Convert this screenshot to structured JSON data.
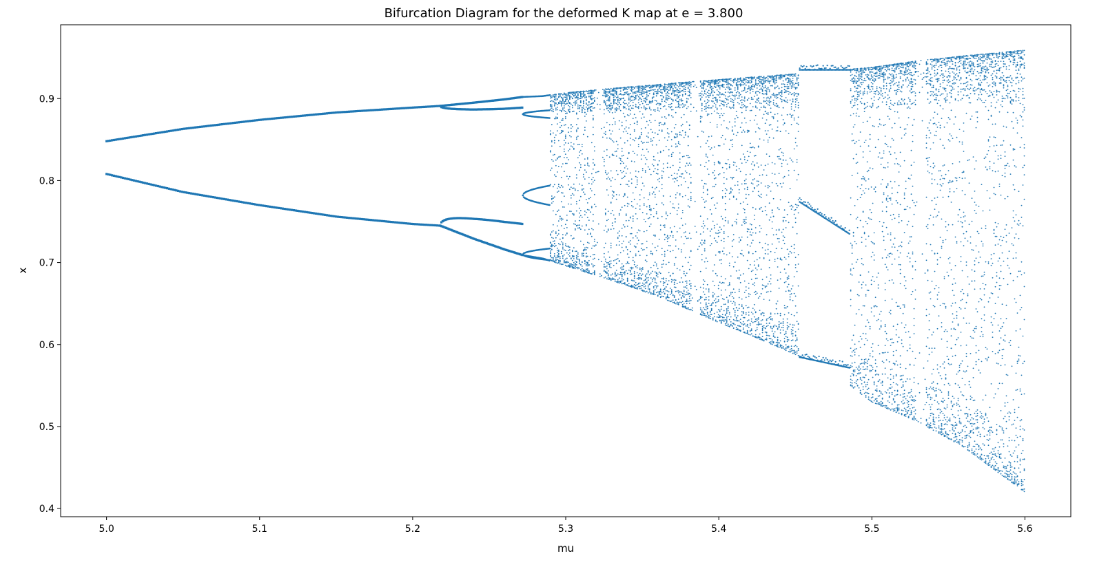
{
  "chart_data": {
    "type": "scatter",
    "title": "Bifurcation Diagram for the deformed K map at e = 3.800",
    "xlabel": "mu",
    "ylabel": "x",
    "xlim": [
      4.97,
      5.63
    ],
    "ylim": [
      0.39,
      0.99
    ],
    "xticks": [
      5.0,
      5.1,
      5.2,
      5.3,
      5.4,
      5.5,
      5.6
    ],
    "xtick_labels": [
      "5.0",
      "5.1",
      "5.2",
      "5.3",
      "5.4",
      "5.5",
      "5.6"
    ],
    "yticks": [
      0.4,
      0.5,
      0.6,
      0.7,
      0.8,
      0.9
    ],
    "ytick_labels": [
      "0.4",
      "0.5",
      "0.6",
      "0.7",
      "0.8",
      "0.9"
    ],
    "grid": false,
    "legend": "none",
    "series_color": "#1f77b4",
    "series": [
      {
        "x": [
          5.0,
          5.05,
          5.1,
          5.15,
          5.2,
          5.218,
          5.24,
          5.26,
          5.272,
          5.285,
          5.3,
          5.322,
          5.34,
          5.36,
          5.385,
          5.4,
          5.42,
          5.45,
          5.47,
          5.5,
          5.53,
          5.56,
          5.6
        ],
        "upper_branch": [
          0.848,
          0.863,
          0.874,
          0.883,
          0.889,
          0.891,
          0.895,
          0.899,
          0.902,
          0.903,
          0.907,
          0.911,
          0.914,
          0.917,
          0.921,
          0.923,
          0.926,
          0.93,
          0.933,
          0.938,
          0.946,
          0.952,
          0.959
        ],
        "lower_branch": [
          0.808,
          0.786,
          0.77,
          0.756,
          0.747,
          0.745,
          0.729,
          0.716,
          0.709,
          0.705,
          0.696,
          0.683,
          0.672,
          0.659,
          0.639,
          0.627,
          0.612,
          0.588,
          0.572,
          0.53,
          0.506,
          0.475,
          0.42
        ],
        "windows_mu": [
          5.322,
          5.385,
          5.465,
          5.532
        ]
      }
    ]
  }
}
